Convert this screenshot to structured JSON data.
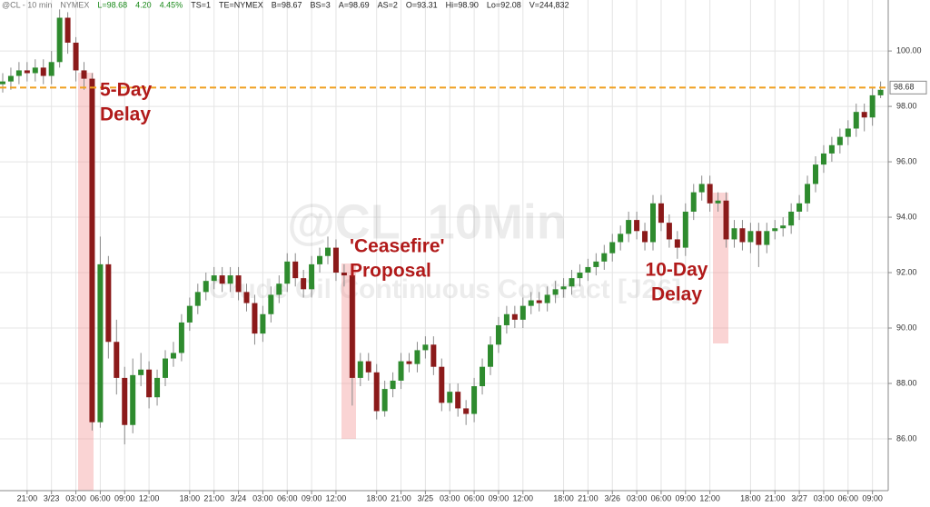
{
  "chart_data": {
    "type": "candlestick",
    "header": [
      {
        "text": "@CL - 10 min",
        "color": "#777777"
      },
      {
        "text": "NYMEX",
        "color": "#777777"
      },
      {
        "text": "L=98.68",
        "color": "#1a8a1a"
      },
      {
        "text": "4.20",
        "color": "#1a8a1a"
      },
      {
        "text": "4.45%",
        "color": "#1a8a1a"
      },
      {
        "text": "TS=1",
        "color": "#222222"
      },
      {
        "text": "TE=NYMEX",
        "color": "#222222"
      },
      {
        "text": "B=98.67",
        "color": "#222222"
      },
      {
        "text": "BS=3",
        "color": "#222222"
      },
      {
        "text": "A=98.69",
        "color": "#222222"
      },
      {
        "text": "AS=2",
        "color": "#222222"
      },
      {
        "text": "O=93.31",
        "color": "#222222"
      },
      {
        "text": "Hi=98.90",
        "color": "#222222"
      },
      {
        "text": "Lo=92.08",
        "color": "#222222"
      },
      {
        "text": "V=244,832",
        "color": "#222222"
      }
    ],
    "watermark": [
      "@CL_10Min",
      "Crude Oil Continuous Contract [J26]"
    ],
    "categories": [
      null,
      null,
      null,
      "21:00",
      null,
      null,
      "3/23",
      null,
      null,
      "03:00",
      null,
      null,
      "06:00",
      null,
      null,
      "09:00",
      null,
      null,
      "12:00",
      null,
      null,
      null,
      null,
      "18:00",
      null,
      null,
      "21:00",
      null,
      null,
      "3/24",
      null,
      null,
      "03:00",
      null,
      null,
      "06:00",
      null,
      null,
      "09:00",
      null,
      null,
      "12:00",
      null,
      null,
      null,
      null,
      "18:00",
      null,
      null,
      "21:00",
      null,
      null,
      "3/25",
      null,
      null,
      "03:00",
      null,
      null,
      "06:00",
      null,
      null,
      "09:00",
      null,
      null,
      "12:00",
      null,
      null,
      null,
      null,
      "18:00",
      null,
      null,
      "21:00",
      null,
      null,
      "3/26",
      null,
      null,
      "03:00",
      null,
      null,
      "06:00",
      null,
      null,
      "09:00",
      null,
      null,
      "12:00",
      null,
      null,
      null,
      null,
      "18:00",
      null,
      null,
      "21:00",
      null,
      null,
      "3/27",
      null,
      null,
      "03:00",
      null,
      null,
      "06:00",
      null,
      null,
      "09:00",
      null
    ],
    "open": [
      98.8,
      98.9,
      99.1,
      99.3,
      99.2,
      99.4,
      99.1,
      99.6,
      101.2,
      100.3,
      99.3,
      99.0,
      86.6,
      92.3,
      89.5,
      88.2,
      86.5,
      88.3,
      88.5,
      87.5,
      88.2,
      88.9,
      89.1,
      90.2,
      90.8,
      91.3,
      91.7,
      91.9,
      91.6,
      91.9,
      91.3,
      90.9,
      89.8,
      90.5,
      91.2,
      91.6,
      92.4,
      91.8,
      91.4,
      92.3,
      92.6,
      92.9,
      92.0,
      91.9,
      88.2,
      88.8,
      88.4,
      87.0,
      87.8,
      88.1,
      88.8,
      88.7,
      89.2,
      89.4,
      88.6,
      87.3,
      87.7,
      87.1,
      86.9,
      87.9,
      88.6,
      89.4,
      90.1,
      90.5,
      90.3,
      90.8,
      91.0,
      90.9,
      91.2,
      91.4,
      91.5,
      91.8,
      92.0,
      92.2,
      92.4,
      92.7,
      93.1,
      93.4,
      93.9,
      93.5,
      93.1,
      94.5,
      93.8,
      93.2,
      92.9,
      94.2,
      94.9,
      95.2,
      94.5,
      94.6,
      93.2,
      93.6,
      93.1,
      93.5,
      93.0,
      93.5,
      93.6,
      93.7,
      94.2,
      94.5,
      95.2,
      95.9,
      96.3,
      96.6,
      96.9,
      97.2,
      97.8,
      97.6,
      98.4
    ],
    "high": [
      99.2,
      99.4,
      99.6,
      99.6,
      99.7,
      99.7,
      100.0,
      101.5,
      101.4,
      100.5,
      99.6,
      99.2,
      93.3,
      92.6,
      90.3,
      88.6,
      88.9,
      89.1,
      88.8,
      88.5,
      89.2,
      89.5,
      90.5,
      91.1,
      91.6,
      92.0,
      92.2,
      92.2,
      92.2,
      92.2,
      91.6,
      91.2,
      90.8,
      91.5,
      91.9,
      92.7,
      92.7,
      92.1,
      92.6,
      92.9,
      93.3,
      93.2,
      92.3,
      92.1,
      89.1,
      89.1,
      88.7,
      88.1,
      88.4,
      89.1,
      89.1,
      89.5,
      89.7,
      89.7,
      88.9,
      88.0,
      88.0,
      87.4,
      88.2,
      88.9,
      89.7,
      90.4,
      90.8,
      90.8,
      91.1,
      91.3,
      91.3,
      91.5,
      91.7,
      91.8,
      92.1,
      92.3,
      92.5,
      92.7,
      93.0,
      93.4,
      93.7,
      94.2,
      94.2,
      93.8,
      94.8,
      94.8,
      94.1,
      93.5,
      94.5,
      95.2,
      95.5,
      95.5,
      94.9,
      94.9,
      93.9,
      93.9,
      93.8,
      93.8,
      93.8,
      93.9,
      94.0,
      94.5,
      94.8,
      95.5,
      96.2,
      96.6,
      96.9,
      97.2,
      97.5,
      98.1,
      98.1,
      98.7,
      98.9
    ],
    "low": [
      98.5,
      98.6,
      98.8,
      98.9,
      98.9,
      98.8,
      98.8,
      99.4,
      99.9,
      98.9,
      98.6,
      86.3,
      86.4,
      88.9,
      87.6,
      85.8,
      86.2,
      87.9,
      87.1,
      87.2,
      87.9,
      88.6,
      88.8,
      89.9,
      90.5,
      91.0,
      91.4,
      91.3,
      91.3,
      91.0,
      90.6,
      89.4,
      89.5,
      90.2,
      90.9,
      91.3,
      91.5,
      91.1,
      91.1,
      92.0,
      92.3,
      91.7,
      91.5,
      87.2,
      87.9,
      88.1,
      86.7,
      86.8,
      87.5,
      87.8,
      88.4,
      88.4,
      88.9,
      88.3,
      87.0,
      87.0,
      86.8,
      86.5,
      86.6,
      87.6,
      88.3,
      89.1,
      89.8,
      90.0,
      90.0,
      90.5,
      90.6,
      90.6,
      90.9,
      91.1,
      91.2,
      91.5,
      91.7,
      91.9,
      92.1,
      92.4,
      92.8,
      93.1,
      93.2,
      92.8,
      92.8,
      93.5,
      92.9,
      92.5,
      92.6,
      93.9,
      94.6,
      94.2,
      94.2,
      92.9,
      92.9,
      92.8,
      92.7,
      92.2,
      92.7,
      93.2,
      93.3,
      93.4,
      93.9,
      94.2,
      94.9,
      95.6,
      96.0,
      96.3,
      96.6,
      96.9,
      97.1,
      97.3,
      98.3
    ],
    "close": [
      98.9,
      99.1,
      99.3,
      99.2,
      99.4,
      99.1,
      99.6,
      101.2,
      100.3,
      99.3,
      99.0,
      86.6,
      92.3,
      89.5,
      88.2,
      86.5,
      88.3,
      88.5,
      87.5,
      88.2,
      88.9,
      89.1,
      90.2,
      90.8,
      91.3,
      91.7,
      91.9,
      91.6,
      91.9,
      91.3,
      90.9,
      89.8,
      90.5,
      91.2,
      91.6,
      92.4,
      91.8,
      91.4,
      92.3,
      92.6,
      92.9,
      92.0,
      91.9,
      88.2,
      88.8,
      88.4,
      87.0,
      87.8,
      88.1,
      88.8,
      88.7,
      89.2,
      89.4,
      88.6,
      87.3,
      87.7,
      87.1,
      86.9,
      87.9,
      88.6,
      89.4,
      90.1,
      90.5,
      90.3,
      90.8,
      91.0,
      90.9,
      91.2,
      91.4,
      91.5,
      91.8,
      92.0,
      92.2,
      92.4,
      92.7,
      93.1,
      93.4,
      93.9,
      93.5,
      93.1,
      94.5,
      93.8,
      93.2,
      92.9,
      94.2,
      94.9,
      95.2,
      94.5,
      94.6,
      93.2,
      93.6,
      93.1,
      93.5,
      93.0,
      93.5,
      93.6,
      93.7,
      94.2,
      94.5,
      95.2,
      95.9,
      96.3,
      96.6,
      96.9,
      97.2,
      97.8,
      97.6,
      98.4,
      98.6
    ],
    "up_color": "#2e8b2e",
    "down_color": "#8b1a1a",
    "wick_color": "#8a8a8a",
    "ylim": [
      84.13,
      101.84
    ],
    "yticks": [
      {
        "value": 86,
        "label": "86.00"
      },
      {
        "value": 88,
        "label": "88.00"
      },
      {
        "value": 90,
        "label": "90.00"
      },
      {
        "value": 92,
        "label": "92.00"
      },
      {
        "value": 94,
        "label": "94.00"
      },
      {
        "value": 96,
        "label": "96.00"
      },
      {
        "value": 98,
        "label": "98.00"
      },
      {
        "value": 100,
        "label": "100.00"
      }
    ],
    "grid": true,
    "reference_line": {
      "value": 98.68,
      "label": "98.68",
      "color": "#f0a020"
    },
    "annotations": [
      {
        "lines": [
          "5-Day",
          "Delay"
        ],
        "at": 12
      },
      {
        "lines": [
          "'Ceasefire'",
          "Proposal"
        ],
        "at": 47
      },
      {
        "lines": [
          "10-Day",
          "Delay"
        ],
        "at": 83
      }
    ]
  }
}
